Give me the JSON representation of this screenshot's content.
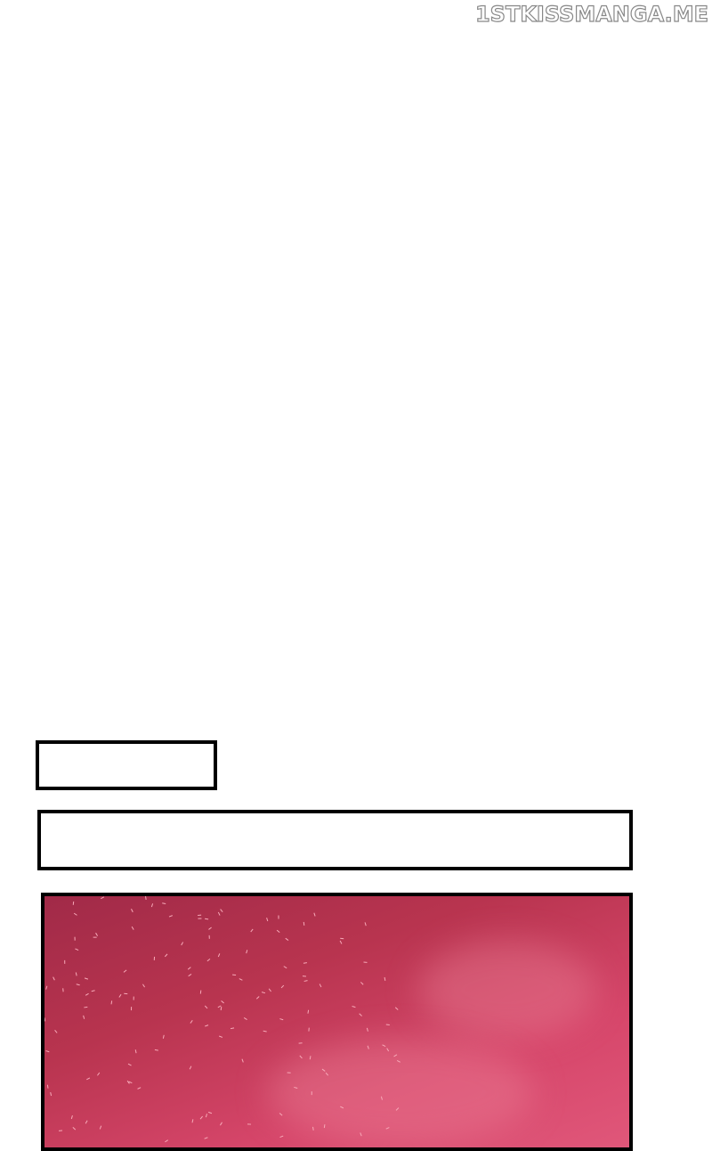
{
  "watermark": "1STKISSMANGA.ME",
  "colors": {
    "panel_fill": "#a52b48",
    "border": "#000000",
    "sky_light": "#e0577a"
  },
  "panels": [
    {
      "type": "empty-caption-box"
    },
    {
      "type": "empty-caption-box"
    },
    {
      "type": "red-sky-panel"
    }
  ]
}
